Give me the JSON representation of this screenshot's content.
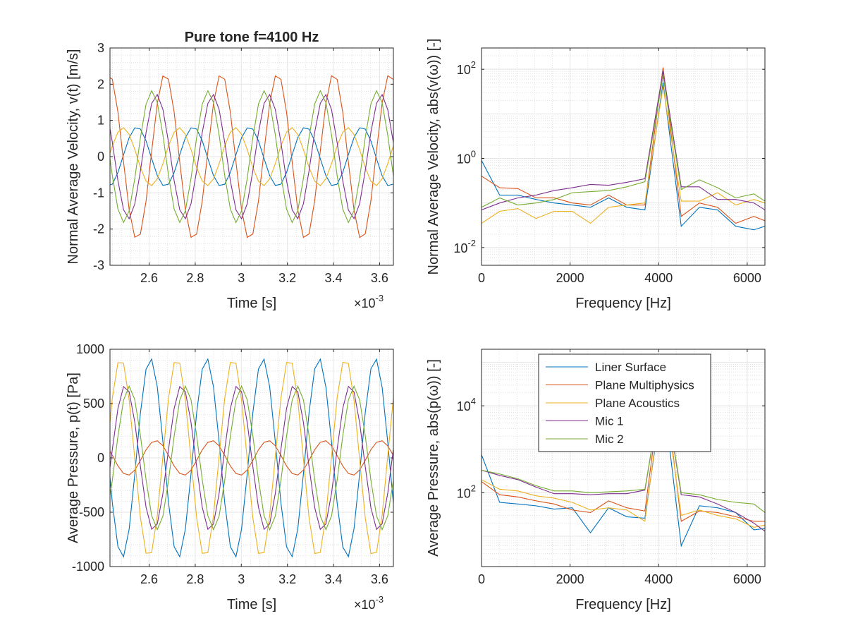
{
  "figure": {
    "colors": [
      "#0072BD",
      "#D95319",
      "#EDB120",
      "#7E2F8E",
      "#77AC30"
    ]
  },
  "chart_data": [
    {
      "id": "velocity_time",
      "type": "line",
      "title": "Pure tone f=4100 Hz",
      "xlabel": "Time [s]",
      "ylabel": "Normal Average Velocity, v(t) [m/s]",
      "x_exponent_label": "×10",
      "x_exponent_power": "-3",
      "xscale": "linear",
      "yscale": "linear",
      "xlim": [
        2.43,
        3.66
      ],
      "ylim": [
        -3,
        3
      ],
      "xticks": [
        2.6,
        2.8,
        3.0,
        3.2,
        3.4,
        3.6
      ],
      "xticklabels": [
        "2.6",
        "2.8",
        "3",
        "3.2",
        "3.4",
        "3.6"
      ],
      "yticks": [
        -3,
        -2,
        -1,
        0,
        1,
        2,
        3
      ],
      "yticklabels": [
        "-3",
        "-2",
        "-1",
        "0",
        "1",
        "2",
        "3"
      ],
      "grid": true,
      "minor_grid": true,
      "signal": {
        "frequency": 4.1,
        "sample_step": 0.0244,
        "series": [
          {
            "amplitude": 0.82,
            "phase_deg": -70
          },
          {
            "amplitude": 2.3,
            "phase_deg": 110
          },
          {
            "amplitude": 0.8,
            "phase_deg": 20
          },
          {
            "amplitude": 1.72,
            "phase_deg": 165
          },
          {
            "amplitude": 1.82,
            "phase_deg": 195
          }
        ]
      }
    },
    {
      "id": "velocity_spectrum",
      "type": "line",
      "title": "",
      "xlabel": "Frequency [Hz]",
      "ylabel": "Normal Average Velocity, abs(v(ω)) [-]",
      "xscale": "linear",
      "yscale": "log",
      "xlim": [
        0,
        6400
      ],
      "ylim": [
        0.004,
        300
      ],
      "xticks": [
        0,
        2000,
        4000,
        6000
      ],
      "xticklabels": [
        "0",
        "2000",
        "4000",
        "6000"
      ],
      "yticks": [
        0.01,
        1,
        100
      ],
      "ytick_base": "10",
      "ytick_powers": [
        "-2",
        "0",
        "2"
      ],
      "grid": true,
      "minor_grid": true,
      "x": [
        0,
        410,
        820,
        1230,
        1640,
        2050,
        2460,
        2870,
        3280,
        3690,
        4100,
        4510,
        4920,
        5330,
        5740,
        6150,
        6400
      ],
      "series": [
        {
          "name": "Liner Surface",
          "values": [
            0.9,
            0.15,
            0.15,
            0.12,
            0.1,
            0.09,
            0.08,
            0.13,
            0.08,
            0.07,
            50,
            0.03,
            0.08,
            0.07,
            0.03,
            0.025,
            0.03
          ]
        },
        {
          "name": "Plane Multiphysics",
          "values": [
            0.4,
            0.22,
            0.21,
            0.13,
            0.13,
            0.1,
            0.09,
            0.15,
            0.09,
            0.09,
            110,
            0.05,
            0.1,
            0.08,
            0.035,
            0.05,
            0.04
          ]
        },
        {
          "name": "Plane Acoustics",
          "values": [
            0.035,
            0.065,
            0.075,
            0.045,
            0.065,
            0.065,
            0.035,
            0.08,
            0.09,
            0.1,
            40,
            0.11,
            0.11,
            0.17,
            0.09,
            0.12,
            0.1
          ]
        },
        {
          "name": "Mic 1",
          "values": [
            0.07,
            0.1,
            0.13,
            0.15,
            0.19,
            0.22,
            0.26,
            0.25,
            0.29,
            0.35,
            90,
            0.23,
            0.23,
            0.12,
            0.12,
            0.1,
            0.07
          ]
        },
        {
          "name": "Mic 2",
          "values": [
            0.08,
            0.13,
            0.09,
            0.1,
            0.12,
            0.17,
            0.18,
            0.19,
            0.23,
            0.3,
            70,
            0.2,
            0.33,
            0.22,
            0.13,
            0.16,
            0.11
          ]
        }
      ]
    },
    {
      "id": "pressure_time",
      "type": "line",
      "title": "",
      "xlabel": "Time [s]",
      "ylabel": "Average Pressure, p(t) [Pa]",
      "x_exponent_label": "×10",
      "x_exponent_power": "-3",
      "xscale": "linear",
      "yscale": "linear",
      "xlim": [
        2.43,
        3.66
      ],
      "ylim": [
        -1000,
        1000
      ],
      "xticks": [
        2.6,
        2.8,
        3.0,
        3.2,
        3.4,
        3.6
      ],
      "xticklabels": [
        "2.6",
        "2.8",
        "3",
        "3.2",
        "3.4",
        "3.6"
      ],
      "yticks": [
        -1000,
        -500,
        0,
        500,
        1000
      ],
      "yticklabels": [
        "-1000",
        "-500",
        "0",
        "500",
        "1000"
      ],
      "grid": true,
      "minor_grid": true,
      "signal": {
        "frequency": 4.1,
        "sample_step": 0.0244,
        "series": [
          {
            "amplitude": 920,
            "phase_deg": 205
          },
          {
            "amplitude": 160,
            "phase_deg": 170
          },
          {
            "amplitude": 920,
            "phase_deg": 35
          },
          {
            "amplitude": 670,
            "phase_deg": 5
          },
          {
            "amplitude": 660,
            "phase_deg": 340
          }
        ]
      }
    },
    {
      "id": "pressure_spectrum",
      "type": "line",
      "title": "",
      "xlabel": "Frequency [Hz]",
      "ylabel": "Average Pressure, abs(p(ω)) [-]",
      "xscale": "linear",
      "yscale": "log",
      "xlim": [
        0,
        6400
      ],
      "ylim": [
        2,
        200000
      ],
      "xticks": [
        0,
        2000,
        4000,
        6000
      ],
      "xticklabels": [
        "0",
        "2000",
        "4000",
        "6000"
      ],
      "yticks": [
        100,
        10000
      ],
      "ytick_base": "10",
      "ytick_powers": [
        "2",
        "4"
      ],
      "grid": true,
      "minor_grid": true,
      "legend": {
        "location": "top-center",
        "entries": [
          "Liner Surface",
          "Plane Multiphysics",
          "Plane Acoustics",
          "Mic 1",
          "Mic 2"
        ]
      },
      "x": [
        0,
        410,
        820,
        1230,
        1640,
        2050,
        2460,
        2870,
        3280,
        3690,
        4100,
        4510,
        4920,
        5330,
        5740,
        6150,
        6400
      ],
      "series": [
        {
          "name": "Liner Surface",
          "values": [
            750,
            60,
            55,
            50,
            42,
            45,
            12,
            45,
            28,
            26,
            20000,
            6,
            50,
            45,
            35,
            14,
            15
          ]
        },
        {
          "name": "Plane Multiphysics",
          "values": [
            180,
            90,
            80,
            65,
            55,
            40,
            35,
            65,
            45,
            38,
            60000,
            22,
            38,
            35,
            28,
            22,
            22
          ]
        },
        {
          "name": "Plane Acoustics",
          "values": [
            200,
            120,
            110,
            85,
            75,
            60,
            40,
            45,
            40,
            22,
            30000,
            30,
            40,
            30,
            25,
            16,
            18
          ]
        },
        {
          "name": "Mic 1",
          "values": [
            330,
            250,
            200,
            135,
            95,
            95,
            90,
            95,
            95,
            115,
            40000,
            90,
            80,
            55,
            35,
            20,
            13
          ]
        },
        {
          "name": "Mic 2",
          "values": [
            330,
            270,
            210,
            145,
            110,
            110,
            100,
            105,
            110,
            120,
            40000,
            100,
            90,
            70,
            60,
            55,
            35
          ]
        }
      ]
    }
  ]
}
